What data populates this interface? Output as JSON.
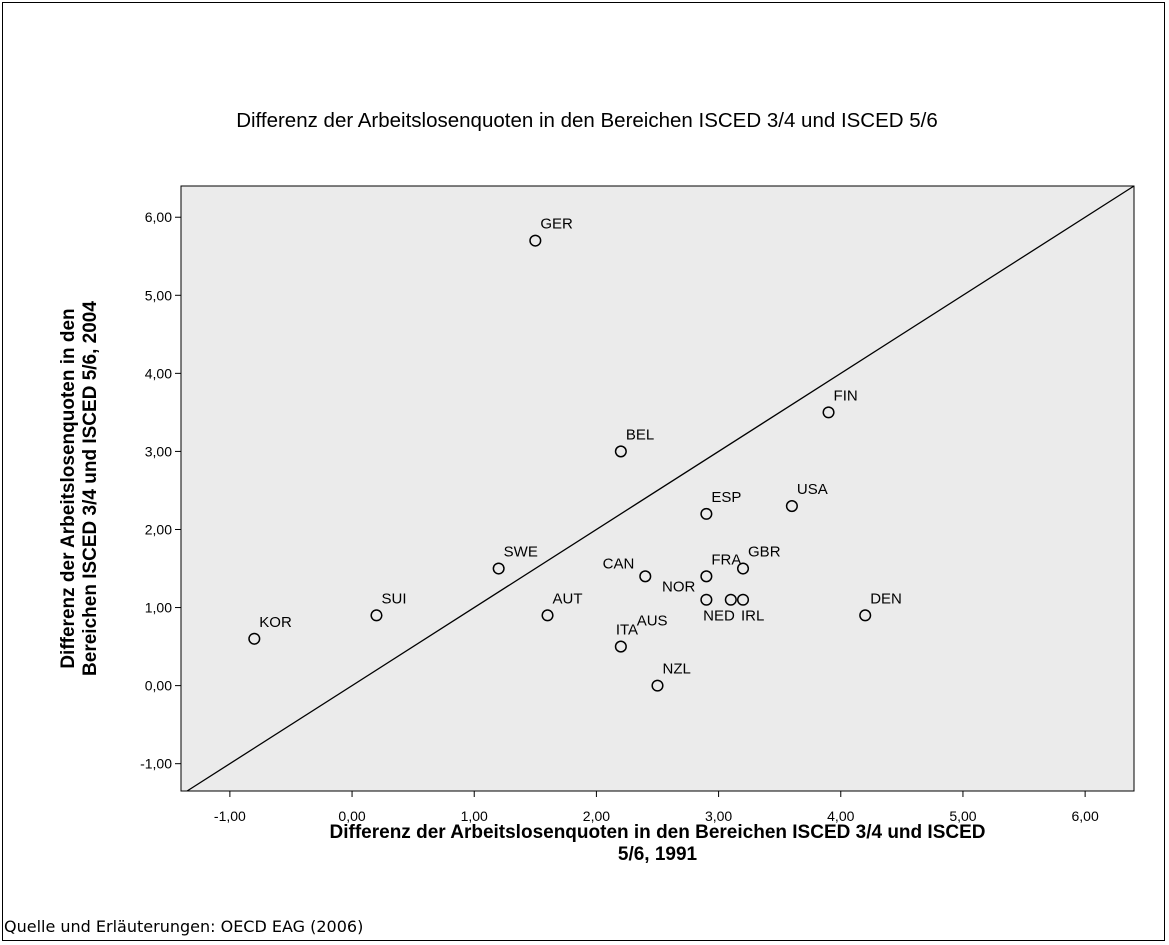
{
  "chart_data": {
    "type": "scatter",
    "title": "Differenz der Arbeitslosenquoten in den Bereichen ISCED 3/4 und ISCED 5/6",
    "xlabel": [
      "Differenz der Arbeitslosenquoten in den Bereichen ISCED 3/4 und ISCED",
      "5/6, 1991"
    ],
    "ylabel": [
      "Differenz der Arbeitslosenquoten in den",
      "Bereichen ISCED 3/4 und ISCED 5/6, 2004"
    ],
    "xlim": [
      -1.4,
      6.4
    ],
    "ylim": [
      -1.35,
      6.4
    ],
    "x_ticks": [
      -1,
      0,
      1,
      2,
      3,
      4,
      5,
      6
    ],
    "x_tick_labels": [
      "-1,00",
      "0,00",
      "1,00",
      "2,00",
      "3,00",
      "4,00",
      "5,00",
      "6,00"
    ],
    "y_ticks": [
      -1,
      0,
      1,
      2,
      3,
      4,
      5,
      6
    ],
    "y_tick_labels": [
      "-1,00",
      "0,00",
      "1,00",
      "2,00",
      "3,00",
      "4,00",
      "5,00",
      "6,00"
    ],
    "reference_line": "y = x",
    "grid": false,
    "plot_background": "#ebebeb",
    "points": [
      {
        "label": "GER",
        "x": 1.5,
        "y": 5.7
      },
      {
        "label": "FIN",
        "x": 3.9,
        "y": 3.5
      },
      {
        "label": "BEL",
        "x": 2.2,
        "y": 3.0
      },
      {
        "label": "USA",
        "x": 3.6,
        "y": 2.3
      },
      {
        "label": "ESP",
        "x": 2.9,
        "y": 2.2
      },
      {
        "label": "SWE",
        "x": 1.2,
        "y": 1.5
      },
      {
        "label": "CAN",
        "x": 2.4,
        "y": 1.4
      },
      {
        "label": "FRA",
        "x": 2.9,
        "y": 1.4
      },
      {
        "label": "GBR",
        "x": 3.2,
        "y": 1.5
      },
      {
        "label": "NOR",
        "x": 2.9,
        "y": 1.1
      },
      {
        "label": "NED",
        "x": 3.1,
        "y": 1.1
      },
      {
        "label": "IRL",
        "x": 3.2,
        "y": 1.1
      },
      {
        "label": "DEN",
        "x": 4.2,
        "y": 0.9
      },
      {
        "label": "SUI",
        "x": 0.2,
        "y": 0.9
      },
      {
        "label": "AUT",
        "x": 1.6,
        "y": 0.9
      },
      {
        "label": "KOR",
        "x": -0.8,
        "y": 0.6
      },
      {
        "label": "ITA",
        "x": 2.2,
        "y": 0.5
      },
      {
        "label": "AUS",
        "x": 2.4,
        "y": 1.4
      },
      {
        "label": "NZL",
        "x": 2.5,
        "y": 0.0
      }
    ]
  },
  "source_note": "Quelle und Erläuterungen: OECD EAG (2006)"
}
